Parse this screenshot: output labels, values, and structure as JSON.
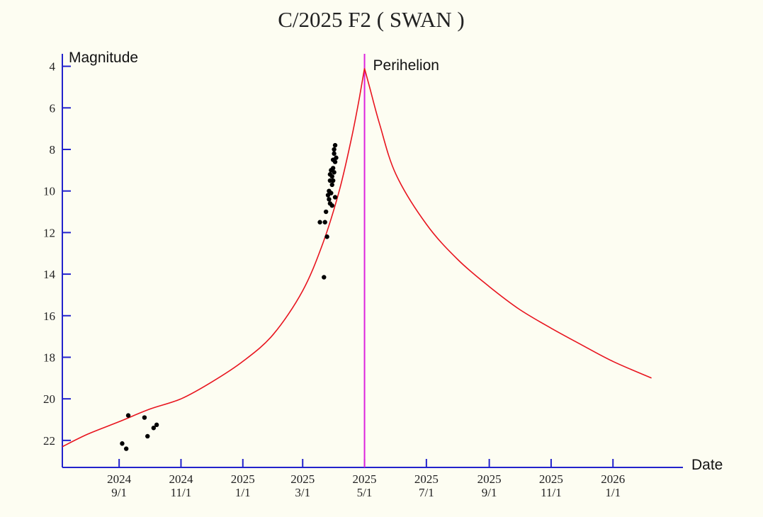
{
  "chart_data": {
    "type": "line",
    "title": "C/2025 F2 ( SWAN )",
    "ylabel": "Magnitude",
    "xlabel": "Date",
    "y_inverted": true,
    "ylim": [
      23.3,
      3.4
    ],
    "xlim": [
      "2024-07-07",
      "2026-03-11"
    ],
    "y_ticks": [
      4,
      6,
      8,
      10,
      12,
      14,
      16,
      18,
      20,
      22
    ],
    "x_ticks": [
      {
        "date": "2024-09-01",
        "year": "2024",
        "md": "9/1"
      },
      {
        "date": "2024-11-01",
        "year": "2024",
        "md": "11/1"
      },
      {
        "date": "2025-01-01",
        "year": "2025",
        "md": "1/1"
      },
      {
        "date": "2025-03-01",
        "year": "2025",
        "md": "3/1"
      },
      {
        "date": "2025-05-01",
        "year": "2025",
        "md": "5/1"
      },
      {
        "date": "2025-07-01",
        "year": "2025",
        "md": "7/1"
      },
      {
        "date": "2025-09-01",
        "year": "2025",
        "md": "9/1"
      },
      {
        "date": "2025-11-01",
        "year": "2025",
        "md": "11/1"
      },
      {
        "date": "2026-01-01",
        "year": "2026",
        "md": "1/1"
      }
    ],
    "perihelion": {
      "date": "2025-05-01",
      "label": "Perihelion"
    },
    "series": [
      {
        "kind": "prediction",
        "color": "#e8141e",
        "points": [
          [
            "2024-07-07",
            22.3
          ],
          [
            "2024-08-01",
            21.7
          ],
          [
            "2024-09-01",
            21.1
          ],
          [
            "2024-10-01",
            20.5
          ],
          [
            "2024-11-01",
            20.0
          ],
          [
            "2024-12-01",
            19.2
          ],
          [
            "2025-01-01",
            18.2
          ],
          [
            "2025-01-31",
            16.9
          ],
          [
            "2025-03-01",
            14.8
          ],
          [
            "2025-03-21",
            12.5
          ],
          [
            "2025-04-06",
            10.0
          ],
          [
            "2025-04-18",
            7.5
          ],
          [
            "2025-04-26",
            5.5
          ],
          [
            "2025-05-01",
            4.1
          ],
          [
            "2025-05-06",
            5.0
          ],
          [
            "2025-05-16",
            6.8
          ],
          [
            "2025-06-01",
            9.2
          ],
          [
            "2025-07-01",
            11.6
          ],
          [
            "2025-08-01",
            13.3
          ],
          [
            "2025-09-01",
            14.6
          ],
          [
            "2025-10-01",
            15.7
          ],
          [
            "2025-11-01",
            16.6
          ],
          [
            "2025-12-01",
            17.4
          ],
          [
            "2026-01-01",
            18.2
          ],
          [
            "2026-02-08",
            19.0
          ]
        ]
      },
      {
        "kind": "observations",
        "color": "#000000",
        "points": [
          [
            "2024-09-04",
            22.15
          ],
          [
            "2024-09-08",
            22.4
          ],
          [
            "2024-09-10",
            20.8
          ],
          [
            "2024-09-26",
            20.9
          ],
          [
            "2024-09-29",
            21.8
          ],
          [
            "2024-10-05",
            21.4
          ],
          [
            "2024-10-08",
            21.25
          ],
          [
            "2025-03-18",
            11.5
          ],
          [
            "2025-03-22",
            14.15
          ],
          [
            "2025-03-23",
            11.5
          ],
          [
            "2025-03-24",
            11.0
          ],
          [
            "2025-03-25",
            12.2
          ],
          [
            "2025-03-26",
            10.2
          ],
          [
            "2025-03-27",
            10.0
          ],
          [
            "2025-03-27",
            10.4
          ],
          [
            "2025-03-28",
            9.5
          ],
          [
            "2025-03-28",
            10.6
          ],
          [
            "2025-03-28",
            9.2
          ],
          [
            "2025-03-29",
            9.0
          ],
          [
            "2025-03-29",
            10.1
          ],
          [
            "2025-03-30",
            10.7
          ],
          [
            "2025-03-30",
            9.7
          ],
          [
            "2025-03-30",
            9.3
          ],
          [
            "2025-03-31",
            9.5
          ],
          [
            "2025-03-31",
            8.5
          ],
          [
            "2025-03-31",
            8.9
          ],
          [
            "2025-04-01",
            8.2
          ],
          [
            "2025-04-01",
            9.1
          ],
          [
            "2025-04-01",
            8.0
          ],
          [
            "2025-04-02",
            7.8
          ],
          [
            "2025-04-02",
            8.6
          ],
          [
            "2025-04-02",
            10.3
          ],
          [
            "2025-04-03",
            8.4
          ]
        ]
      }
    ]
  }
}
